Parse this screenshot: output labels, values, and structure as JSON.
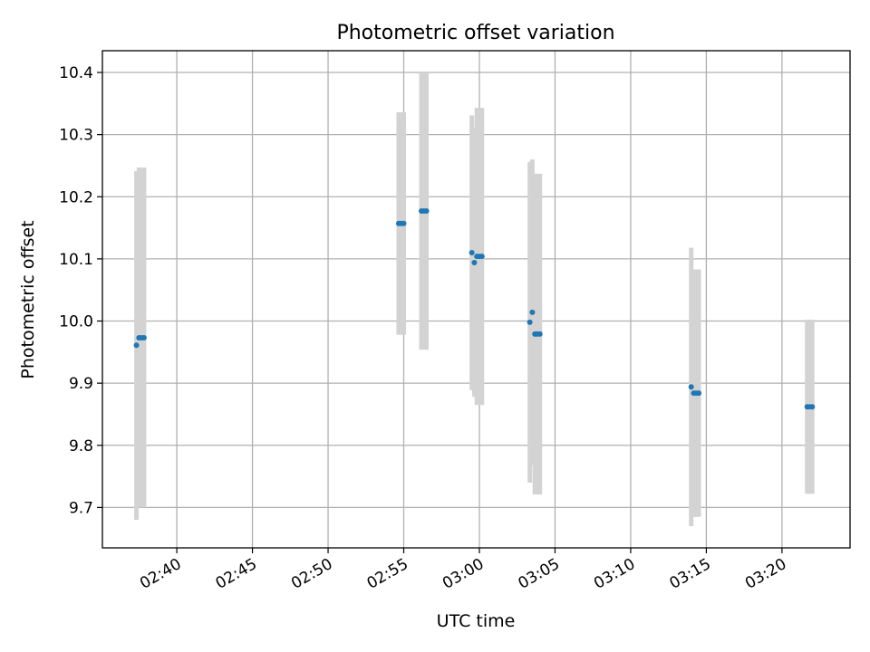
{
  "chart_data": {
    "type": "scatter",
    "title": "Photometric offset variation",
    "xlabel": "UTC time",
    "ylabel": "Photometric offset",
    "xlim": [
      "02:35:05",
      "03:24:30"
    ],
    "ylim": [
      9.635,
      10.435
    ],
    "grid": true,
    "x_ticks": [
      "02:40",
      "02:45",
      "02:50",
      "02:55",
      "03:00",
      "03:05",
      "03:10",
      "03:15",
      "03:20"
    ],
    "y_ticks": [
      "9.7",
      "9.8",
      "9.9",
      "10.0",
      "10.1",
      "10.2",
      "10.3",
      "10.4"
    ],
    "colors": {
      "points": "#1f77b4",
      "error_bars": "#d3d3d3",
      "grid": "#b0b0b0"
    },
    "series": [
      {
        "points": [
          {
            "x": "02:37:20",
            "y": 9.961,
            "ylow": 9.68,
            "yhigh": 10.241
          },
          {
            "x": "02:37:30",
            "y": 9.973,
            "ylow": 9.7,
            "yhigh": 10.247
          },
          {
            "x": "02:37:40",
            "y": 9.973,
            "ylow": 9.7,
            "yhigh": 10.247
          },
          {
            "x": "02:37:50",
            "y": 9.973,
            "ylow": 9.7,
            "yhigh": 10.247
          },
          {
            "x": "02:54:40",
            "y": 10.157,
            "ylow": 9.978,
            "yhigh": 10.336
          },
          {
            "x": "02:54:50",
            "y": 10.157,
            "ylow": 9.978,
            "yhigh": 10.336
          },
          {
            "x": "02:55:00",
            "y": 10.157,
            "ylow": 9.978,
            "yhigh": 10.336
          },
          {
            "x": "02:56:10",
            "y": 10.177,
            "ylow": 9.954,
            "yhigh": 10.4
          },
          {
            "x": "02:56:20",
            "y": 10.177,
            "ylow": 9.954,
            "yhigh": 10.4
          },
          {
            "x": "02:56:30",
            "y": 10.177,
            "ylow": 9.954,
            "yhigh": 10.4
          },
          {
            "x": "02:59:30",
            "y": 10.11,
            "ylow": 9.889,
            "yhigh": 10.331
          },
          {
            "x": "02:59:40",
            "y": 10.094,
            "ylow": 9.878,
            "yhigh": 10.311
          },
          {
            "x": "02:59:50",
            "y": 10.104,
            "ylow": 9.865,
            "yhigh": 10.343
          },
          {
            "x": "03:00:00",
            "y": 10.104,
            "ylow": 9.865,
            "yhigh": 10.343
          },
          {
            "x": "03:00:10",
            "y": 10.104,
            "ylow": 9.865,
            "yhigh": 10.343
          },
          {
            "x": "03:03:20",
            "y": 9.998,
            "ylow": 9.74,
            "yhigh": 10.256
          },
          {
            "x": "03:03:30",
            "y": 10.014,
            "ylow": 9.768,
            "yhigh": 10.26
          },
          {
            "x": "03:03:40",
            "y": 9.979,
            "ylow": 9.721,
            "yhigh": 10.237
          },
          {
            "x": "03:03:50",
            "y": 9.979,
            "ylow": 9.721,
            "yhigh": 10.237
          },
          {
            "x": "03:04:00",
            "y": 9.979,
            "ylow": 9.721,
            "yhigh": 10.237
          },
          {
            "x": "03:14:00",
            "y": 9.894,
            "ylow": 9.67,
            "yhigh": 10.118
          },
          {
            "x": "03:14:10",
            "y": 9.884,
            "ylow": 9.685,
            "yhigh": 10.083
          },
          {
            "x": "03:14:20",
            "y": 9.884,
            "ylow": 9.685,
            "yhigh": 10.083
          },
          {
            "x": "03:14:30",
            "y": 9.884,
            "ylow": 9.685,
            "yhigh": 10.083
          },
          {
            "x": "03:21:40",
            "y": 9.862,
            "ylow": 9.722,
            "yhigh": 10.002
          },
          {
            "x": "03:21:50",
            "y": 9.862,
            "ylow": 9.722,
            "yhigh": 10.002
          },
          {
            "x": "03:22:00",
            "y": 9.862,
            "ylow": 9.722,
            "yhigh": 10.002
          }
        ]
      }
    ]
  }
}
